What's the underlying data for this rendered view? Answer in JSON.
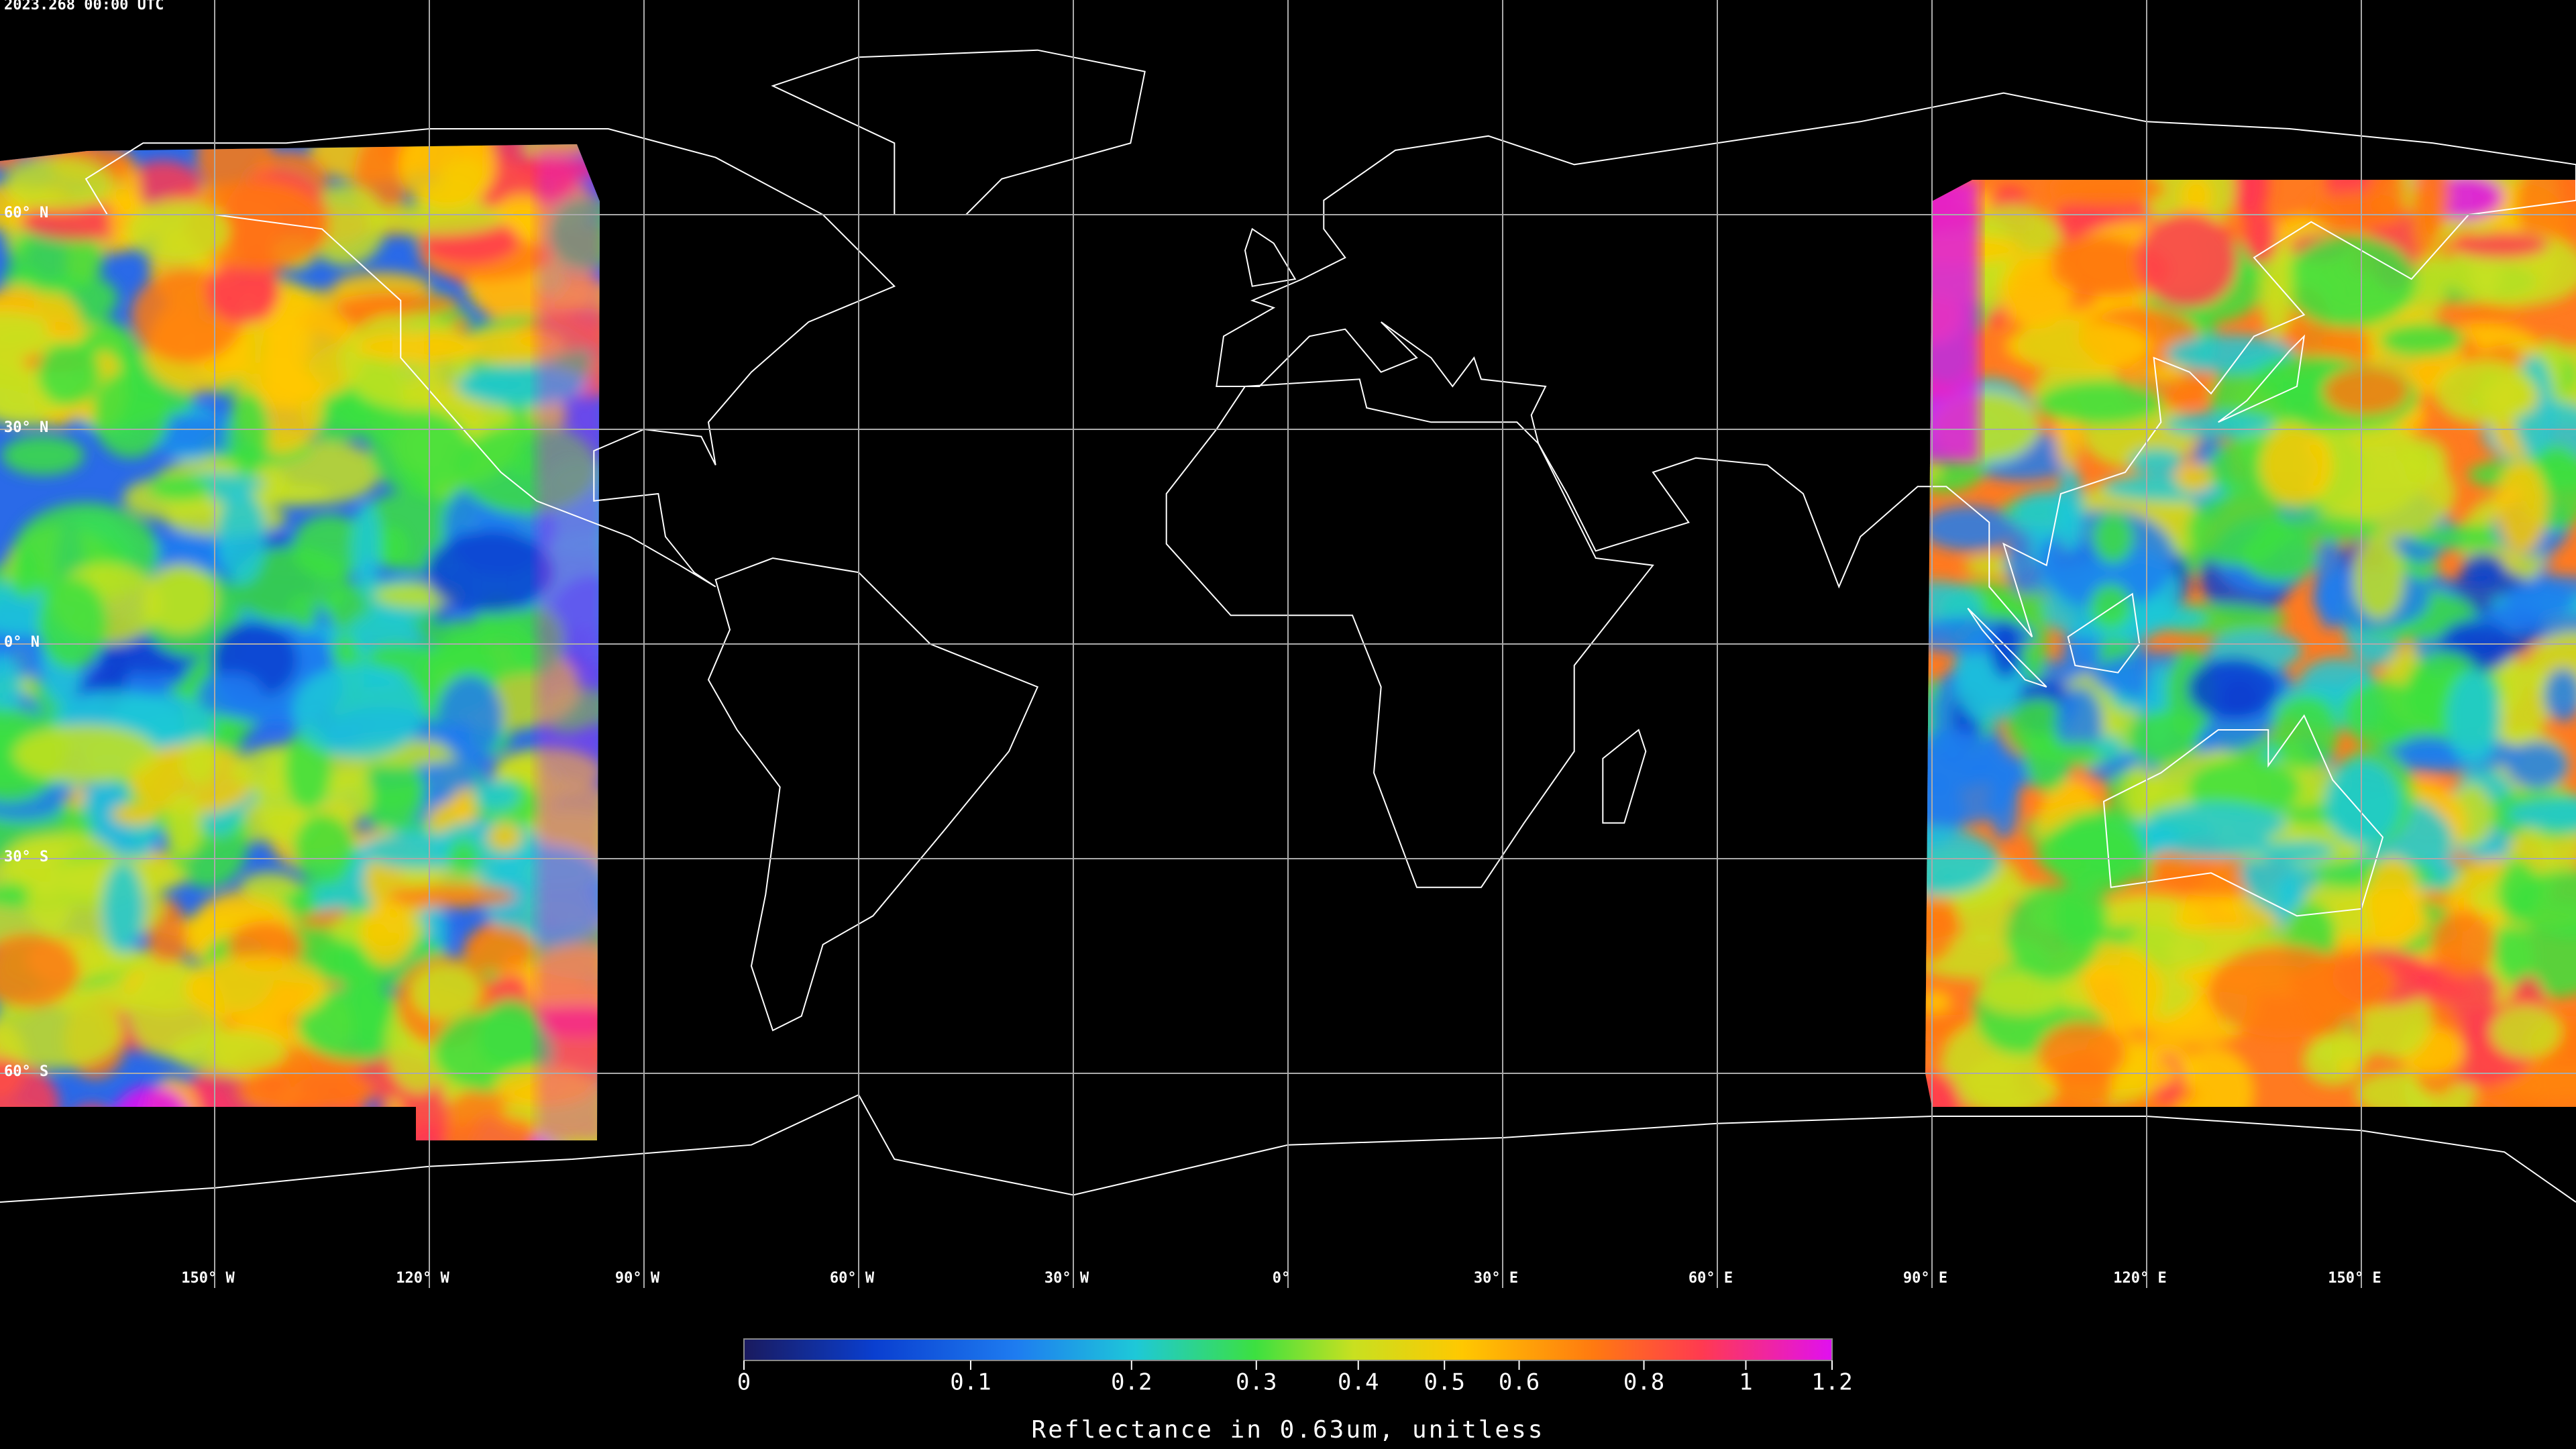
{
  "title": "2023.268 00:00 UTC",
  "latitude_labels": [
    {
      "value": 60,
      "label": "60° N"
    },
    {
      "value": 30,
      "label": "30° N"
    },
    {
      "value": 0,
      "label": "0° N"
    },
    {
      "value": -30,
      "label": "30° S"
    },
    {
      "value": -60,
      "label": "60° S"
    }
  ],
  "longitude_labels": [
    {
      "value": -150,
      "label": "150° W"
    },
    {
      "value": -120,
      "label": "120° W"
    },
    {
      "value": -90,
      "label": "90° W"
    },
    {
      "value": -60,
      "label": "60° W"
    },
    {
      "value": -30,
      "label": "30° W"
    },
    {
      "value": 0,
      "label": "0°"
    },
    {
      "value": 30,
      "label": "30° E"
    },
    {
      "value": 60,
      "label": "60° E"
    },
    {
      "value": 90,
      "label": "90° E"
    },
    {
      "value": 120,
      "label": "120° E"
    },
    {
      "value": 150,
      "label": "150° E"
    }
  ],
  "colorbar": {
    "label": "Reflectance in 0.63um, unitless",
    "range": [
      0,
      1.2
    ],
    "ticks": [
      0,
      0.1,
      0.2,
      0.3,
      0.4,
      0.5,
      0.6,
      0.8,
      1,
      1.2
    ]
  }
}
